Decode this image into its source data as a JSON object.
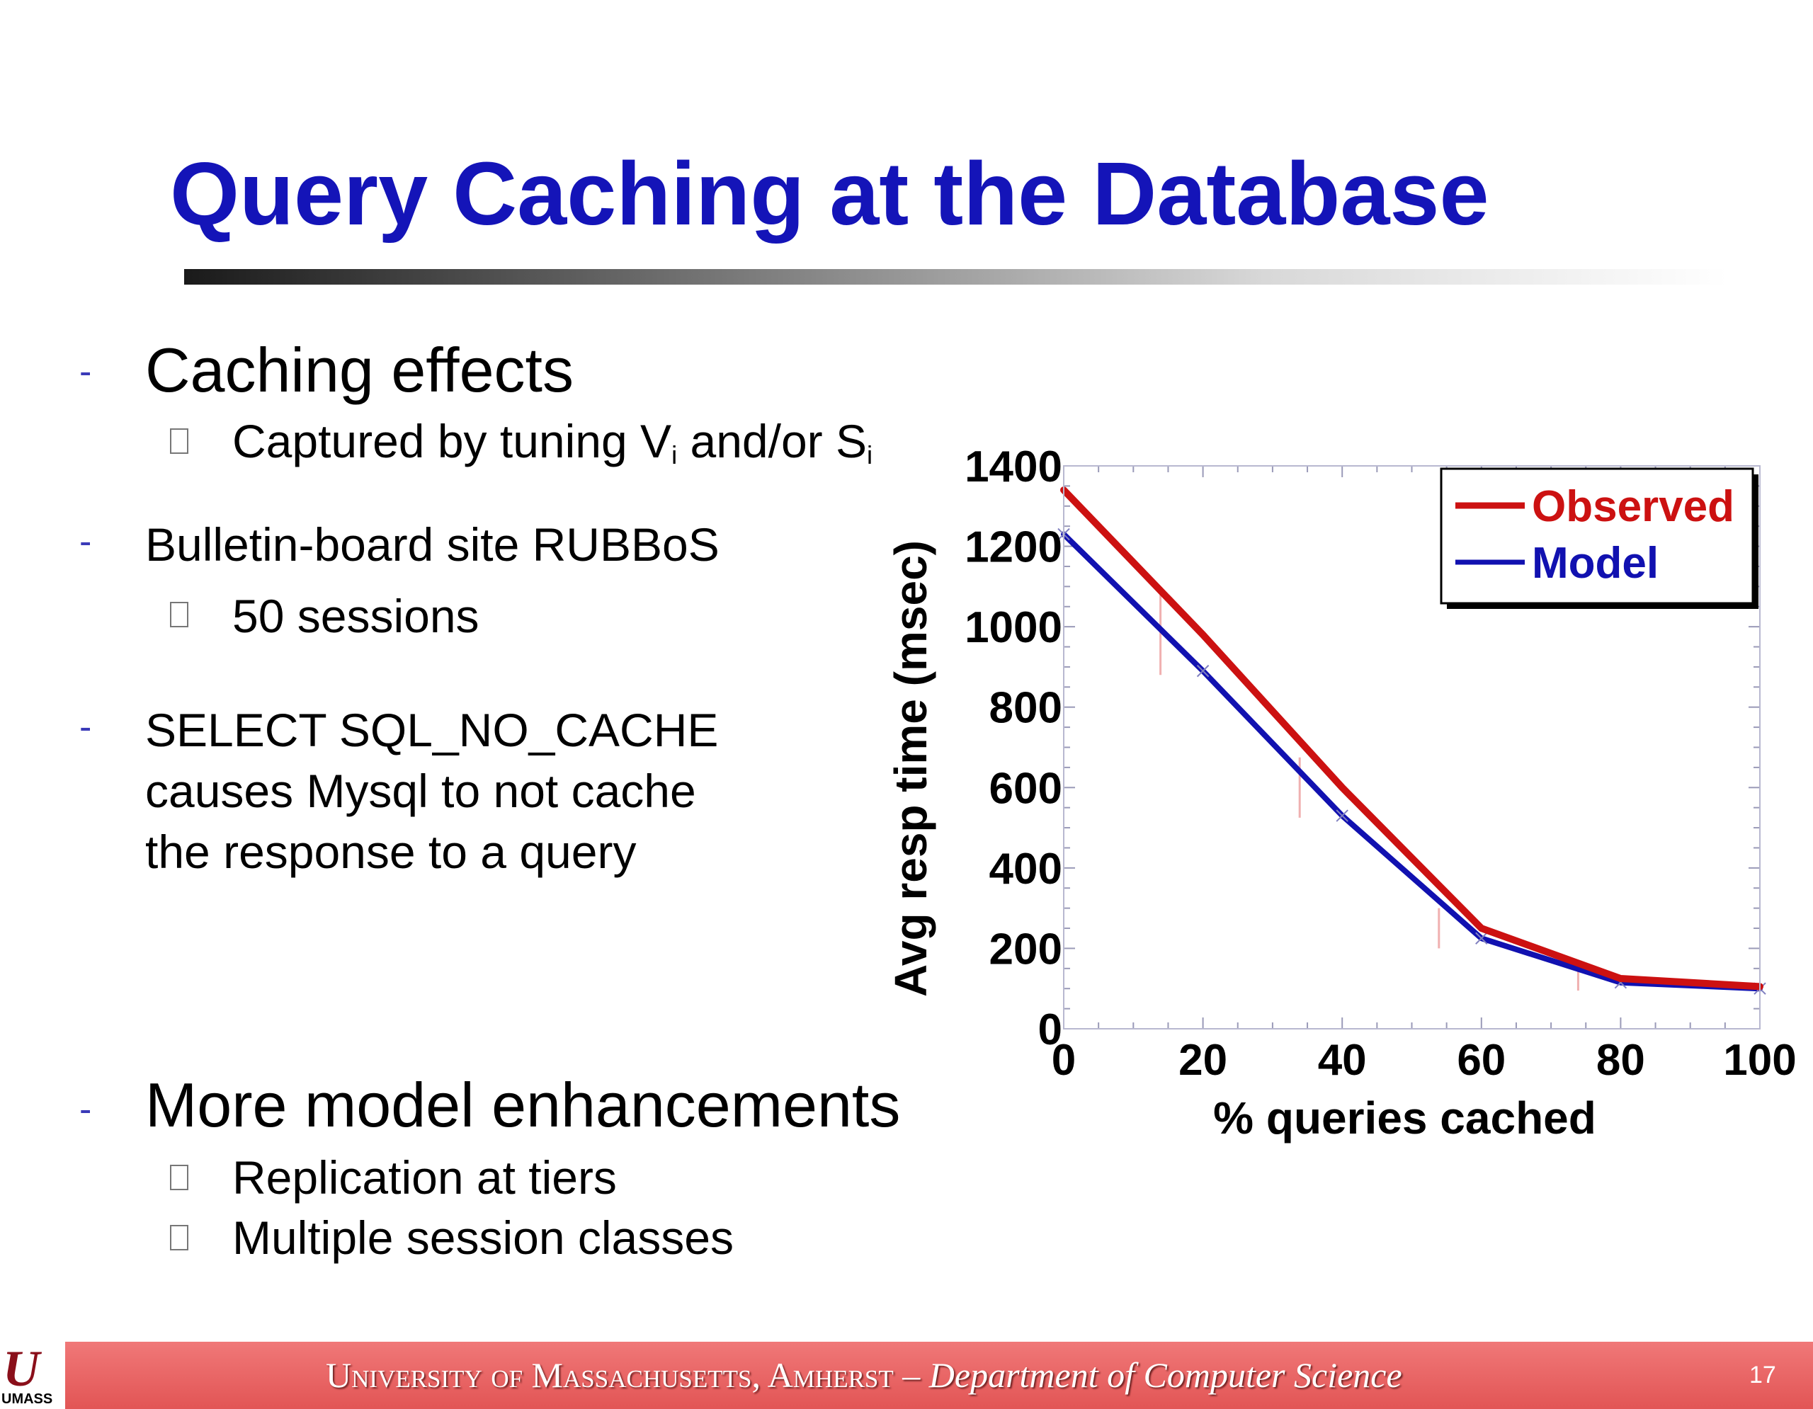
{
  "slide": {
    "title": "Query Caching at the Database"
  },
  "bullets": {
    "b1": "Caching effects",
    "b1_sub1_prefix": "Captured by tuning V",
    "b1_sub1_sub_a": "i",
    "b1_sub1_mid": " and/or S",
    "b1_sub1_sub_b": "i",
    "b2": "Bulletin-board site RUBBoS",
    "b2_sub1": "50 sessions",
    "b3_line1": "SELECT SQL_NO_CACHE",
    "b3_line2": "causes Mysql to not cache",
    "b3_line3": "the response to a query",
    "b4": "More model enhancements",
    "b4_sub1": "Replication at tiers",
    "b4_sub2": "Multiple session classes",
    "dash": "-"
  },
  "footer": {
    "institution": "University of Massachusetts, Amherst",
    "separator": " – ",
    "department": "Department of Computer Science",
    "page_number": "17",
    "logo_mark": "U",
    "logo_text": "UMASS"
  },
  "colors": {
    "title": "#1414b8",
    "observed": "#cc1111",
    "model": "#1111b0",
    "footer": "#e25555"
  },
  "chart_data": {
    "type": "line",
    "xlabel": "% queries cached",
    "ylabel": "Avg resp time (msec)",
    "xlim": [
      0,
      100
    ],
    "ylim": [
      0,
      1400
    ],
    "x_ticks": [
      0,
      20,
      40,
      60,
      80,
      100
    ],
    "y_ticks": [
      0,
      200,
      400,
      600,
      800,
      1000,
      1200,
      1400
    ],
    "legend_position": "top-right",
    "series": [
      {
        "name": "Observed",
        "color": "#cc1111",
        "x": [
          0,
          20,
          40,
          60,
          80,
          100
        ],
        "y": [
          1340,
          980,
          600,
          250,
          125,
          105
        ],
        "error": [
          0,
          200,
          150,
          100,
          60,
          0
        ]
      },
      {
        "name": "Model",
        "color": "#1111b0",
        "marker": "x",
        "x": [
          0,
          20,
          40,
          60,
          80,
          100
        ],
        "y": [
          1230,
          890,
          530,
          225,
          115,
          100
        ]
      }
    ]
  }
}
